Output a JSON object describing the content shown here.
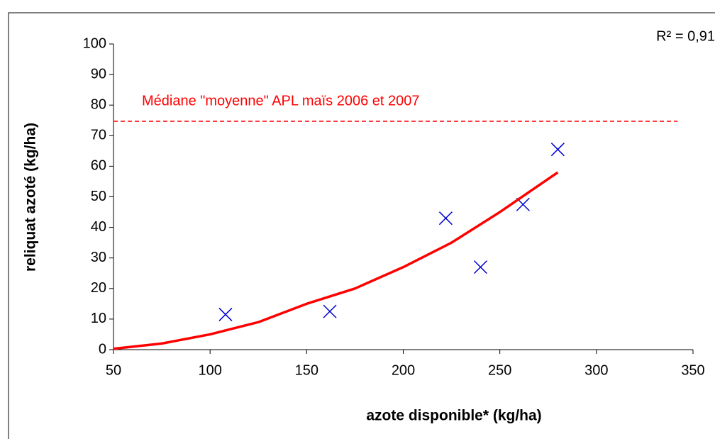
{
  "chart_data": {
    "type": "scatter",
    "xlabel": "azote disponible* (kg/ha)",
    "ylabel": "reliquat azoté (kg/ha)",
    "xlim": [
      50,
      350
    ],
    "xticks": [
      50,
      100,
      150,
      200,
      250,
      300,
      350
    ],
    "ylim": [
      0,
      100
    ],
    "yticks": [
      0,
      10,
      20,
      30,
      40,
      50,
      60,
      70,
      80,
      90,
      100
    ],
    "series": [
      {
        "type": "scatter",
        "marker": "x",
        "color": "#0000cc",
        "x": [
          108,
          162,
          222,
          240,
          262,
          280
        ],
        "values": [
          11.5,
          12.5,
          43,
          27,
          47.5,
          65.5
        ]
      },
      {
        "type": "line",
        "color": "#ff0000",
        "x": [
          50,
          75,
          100,
          125,
          150,
          175,
          200,
          225,
          250,
          280
        ],
        "values": [
          0.3,
          2,
          5,
          9,
          15,
          20,
          27,
          35,
          45,
          58
        ]
      }
    ],
    "reference_line": {
      "label": "Médiane \"moyenne\" APL maïs 2006 et 2007",
      "value": 74.7,
      "x": [
        50,
        342
      ],
      "color": "#ff0000"
    },
    "annotation": "R² = 0,91"
  }
}
